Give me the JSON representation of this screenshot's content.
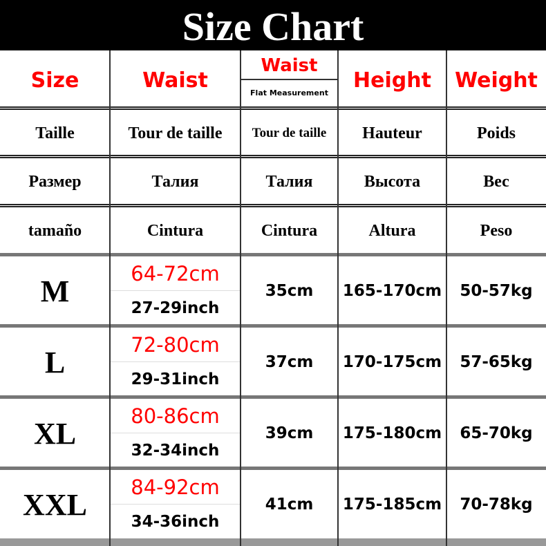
{
  "title": "Size Chart",
  "header": {
    "size": "Size",
    "waist": "Waist",
    "waist_flat": "Waist",
    "flat_note": "Flat Measurement",
    "height": "Height",
    "weight": "Weight"
  },
  "translations": [
    {
      "size": "Taille",
      "waist": "Tour de taille",
      "waist_flat": "Tour de taille",
      "height": "Hauteur",
      "weight": "Poids"
    },
    {
      "size": "Размер",
      "waist": "Талия",
      "waist_flat": "Талия",
      "height": "Высота",
      "weight": "Вес"
    },
    {
      "size": "tamaño",
      "waist": "Cintura",
      "waist_flat": "Cintura",
      "height": "Altura",
      "weight": "Peso"
    }
  ],
  "rows": [
    {
      "size": "M",
      "waist_cm": "64-72cm",
      "waist_inch": "27-29inch",
      "flat": "35cm",
      "height": "165-170cm",
      "weight": "50-57kg"
    },
    {
      "size": "L",
      "waist_cm": "72-80cm",
      "waist_inch": "29-31inch",
      "flat": "37cm",
      "height": "170-175cm",
      "weight": "57-65kg"
    },
    {
      "size": "XL",
      "waist_cm": "80-86cm",
      "waist_inch": "32-34inch",
      "flat": "39cm",
      "height": "175-180cm",
      "weight": "65-70kg"
    },
    {
      "size": "XXL",
      "waist_cm": "84-92cm",
      "waist_inch": "34-36inch",
      "flat": "41cm",
      "height": "175-185cm",
      "weight": "70-78kg"
    }
  ],
  "colors": {
    "accent": "#ff0000",
    "title_bg": "#000000"
  }
}
